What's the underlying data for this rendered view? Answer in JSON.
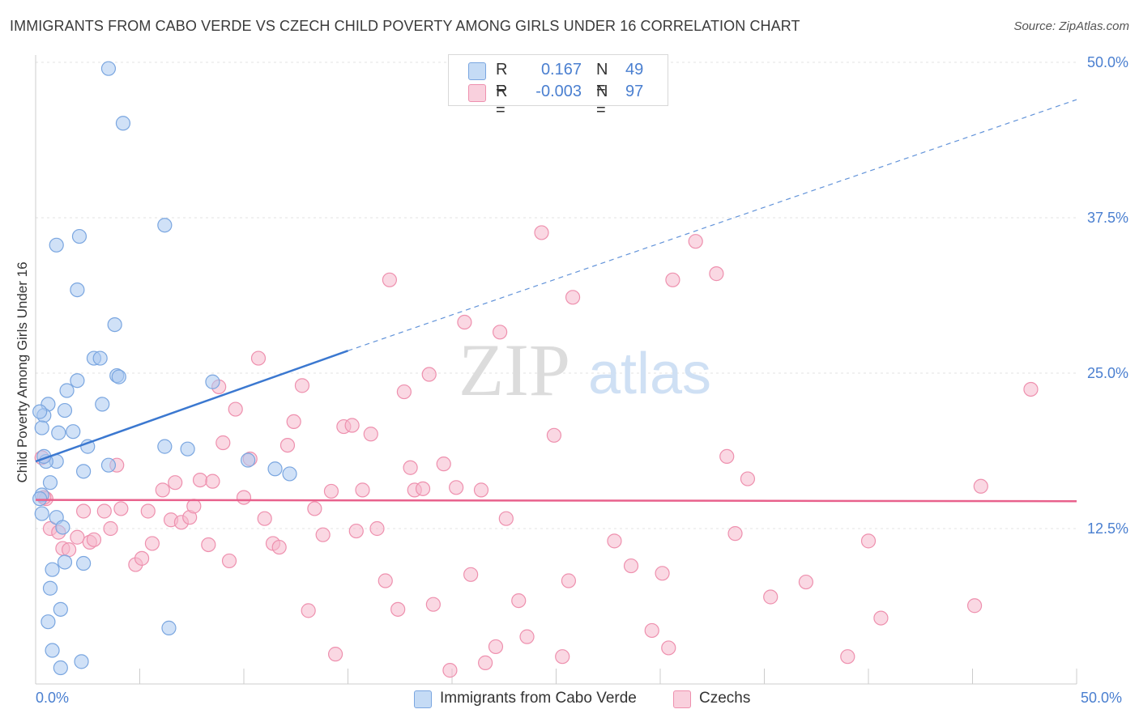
{
  "header": {
    "title": "IMMIGRANTS FROM CABO VERDE VS CZECH CHILD POVERTY AMONG GIRLS UNDER 16 CORRELATION CHART",
    "source": "Source: ZipAtlas.com"
  },
  "watermark": {
    "zip": "ZIP",
    "atlas": "atlas"
  },
  "legend": {
    "rows": [
      {
        "r_label": "R =",
        "r_value": "0.167",
        "n_label": "N =",
        "n_value": "49",
        "color": "#a9c8f0"
      },
      {
        "r_label": "R =",
        "r_value": "-0.003",
        "n_label": "N =",
        "n_value": "97",
        "color": "#f6b8cc"
      }
    ]
  },
  "chart_data": {
    "type": "scatter",
    "title": "IMMIGRANTS FROM CABO VERDE VS CZECH CHILD POVERTY AMONG GIRLS UNDER 16 CORRELATION CHART",
    "xlabel": "",
    "ylabel": "Child Poverty Among Girls Under 16",
    "xlim": [
      0,
      50
    ],
    "ylim": [
      0,
      50
    ],
    "x_tick_labels": [
      "0.0%",
      "50.0%"
    ],
    "y_ticks": [
      12.5,
      25.0,
      37.5,
      50.0
    ],
    "y_tick_labels": [
      "12.5%",
      "25.0%",
      "37.5%",
      "50.0%"
    ],
    "grid": true,
    "legend_position": "bottom",
    "series": [
      {
        "name": "Immigrants from Cabo Verde",
        "color": "#a9c8f0",
        "edge": "#7aa6e0",
        "trend": {
          "x": [
            0,
            15
          ],
          "y": [
            17.9,
            26.8
          ],
          "dashed_to": [
            50,
            47.0
          ],
          "color": "#3b78d0"
        },
        "points": [
          [
            3.5,
            49.5
          ],
          [
            4.2,
            45.1
          ],
          [
            6.2,
            36.9
          ],
          [
            2.1,
            36.0
          ],
          [
            1.0,
            35.3
          ],
          [
            2.0,
            31.7
          ],
          [
            3.8,
            28.9
          ],
          [
            2.8,
            26.2
          ],
          [
            3.1,
            26.2
          ],
          [
            3.9,
            24.8
          ],
          [
            4.0,
            24.7
          ],
          [
            2.0,
            24.4
          ],
          [
            8.5,
            24.3
          ],
          [
            1.5,
            23.6
          ],
          [
            0.6,
            22.5
          ],
          [
            3.2,
            22.5
          ],
          [
            1.4,
            22.0
          ],
          [
            0.4,
            21.6
          ],
          [
            0.2,
            21.9
          ],
          [
            0.3,
            20.6
          ],
          [
            1.8,
            20.3
          ],
          [
            1.1,
            20.2
          ],
          [
            2.5,
            19.1
          ],
          [
            6.2,
            19.1
          ],
          [
            7.3,
            18.9
          ],
          [
            1.0,
            17.9
          ],
          [
            0.5,
            17.9
          ],
          [
            10.2,
            18.0
          ],
          [
            3.5,
            17.6
          ],
          [
            2.3,
            17.1
          ],
          [
            11.5,
            17.3
          ],
          [
            12.2,
            16.9
          ],
          [
            0.7,
            16.2
          ],
          [
            0.3,
            15.2
          ],
          [
            0.2,
            14.9
          ],
          [
            0.3,
            13.7
          ],
          [
            1.0,
            13.4
          ],
          [
            1.3,
            12.6
          ],
          [
            1.4,
            9.8
          ],
          [
            2.3,
            9.7
          ],
          [
            0.8,
            9.2
          ],
          [
            0.7,
            7.7
          ],
          [
            1.2,
            6.0
          ],
          [
            6.4,
            4.5
          ],
          [
            0.6,
            5.0
          ],
          [
            0.8,
            2.7
          ],
          [
            1.2,
            1.3
          ],
          [
            2.2,
            1.8
          ],
          [
            0.4,
            18.3
          ]
        ]
      },
      {
        "name": "Czechs",
        "color": "#f6b8cc",
        "edge": "#ee90ae",
        "trend": {
          "x": [
            0,
            50
          ],
          "y": [
            14.8,
            14.7
          ],
          "color": "#e8618c"
        },
        "points": [
          [
            0.3,
            18.2
          ],
          [
            0.5,
            14.9
          ],
          [
            0.7,
            12.5
          ],
          [
            1.1,
            12.2
          ],
          [
            1.3,
            10.9
          ],
          [
            1.6,
            10.8
          ],
          [
            2.0,
            11.8
          ],
          [
            2.3,
            13.9
          ],
          [
            2.6,
            11.4
          ],
          [
            2.8,
            11.6
          ],
          [
            3.3,
            13.9
          ],
          [
            3.6,
            12.5
          ],
          [
            3.9,
            17.6
          ],
          [
            4.1,
            14.1
          ],
          [
            4.8,
            9.6
          ],
          [
            5.1,
            10.1
          ],
          [
            5.4,
            13.9
          ],
          [
            5.6,
            11.3
          ],
          [
            6.1,
            15.6
          ],
          [
            6.5,
            13.2
          ],
          [
            6.7,
            16.2
          ],
          [
            7.0,
            13.0
          ],
          [
            7.4,
            13.4
          ],
          [
            7.6,
            14.3
          ],
          [
            7.9,
            16.4
          ],
          [
            8.3,
            11.2
          ],
          [
            8.5,
            16.3
          ],
          [
            8.8,
            23.9
          ],
          [
            9.0,
            19.4
          ],
          [
            9.3,
            9.9
          ],
          [
            9.6,
            22.1
          ],
          [
            10.0,
            15.0
          ],
          [
            10.3,
            18.1
          ],
          [
            10.7,
            26.2
          ],
          [
            11.0,
            13.3
          ],
          [
            11.4,
            11.3
          ],
          [
            11.7,
            11.0
          ],
          [
            12.1,
            19.2
          ],
          [
            12.4,
            21.1
          ],
          [
            12.8,
            24.0
          ],
          [
            13.1,
            5.9
          ],
          [
            13.4,
            14.1
          ],
          [
            13.8,
            12.0
          ],
          [
            14.2,
            15.5
          ],
          [
            14.4,
            2.4
          ],
          [
            14.8,
            20.7
          ],
          [
            15.2,
            20.8
          ],
          [
            15.4,
            12.3
          ],
          [
            15.7,
            15.6
          ],
          [
            16.1,
            20.1
          ],
          [
            16.4,
            12.5
          ],
          [
            16.8,
            8.3
          ],
          [
            17.0,
            32.5
          ],
          [
            17.4,
            6.0
          ],
          [
            17.7,
            23.5
          ],
          [
            18.0,
            17.4
          ],
          [
            18.2,
            15.6
          ],
          [
            18.6,
            15.7
          ],
          [
            18.9,
            24.9
          ],
          [
            19.1,
            6.4
          ],
          [
            19.6,
            17.7
          ],
          [
            19.9,
            1.1
          ],
          [
            20.2,
            15.8
          ],
          [
            20.6,
            29.1
          ],
          [
            20.9,
            8.8
          ],
          [
            21.4,
            15.6
          ],
          [
            21.6,
            1.7
          ],
          [
            22.1,
            3.0
          ],
          [
            22.3,
            28.3
          ],
          [
            22.6,
            13.3
          ],
          [
            23.2,
            6.7
          ],
          [
            23.6,
            3.8
          ],
          [
            24.3,
            36.3
          ],
          [
            24.9,
            20.0
          ],
          [
            25.3,
            2.2
          ],
          [
            25.6,
            8.3
          ],
          [
            25.8,
            31.1
          ],
          [
            27.8,
            11.5
          ],
          [
            28.6,
            9.5
          ],
          [
            29.6,
            4.3
          ],
          [
            30.1,
            8.9
          ],
          [
            30.4,
            2.9
          ],
          [
            30.6,
            32.5
          ],
          [
            31.7,
            35.6
          ],
          [
            32.7,
            33.0
          ],
          [
            33.2,
            18.3
          ],
          [
            33.6,
            12.1
          ],
          [
            34.2,
            16.5
          ],
          [
            35.3,
            7.0
          ],
          [
            37.0,
            8.2
          ],
          [
            39.0,
            2.2
          ],
          [
            40.0,
            11.5
          ],
          [
            40.6,
            5.3
          ],
          [
            45.1,
            6.3
          ],
          [
            45.4,
            15.9
          ],
          [
            47.8,
            23.7
          ],
          [
            0.4,
            15.0
          ]
        ]
      }
    ]
  }
}
